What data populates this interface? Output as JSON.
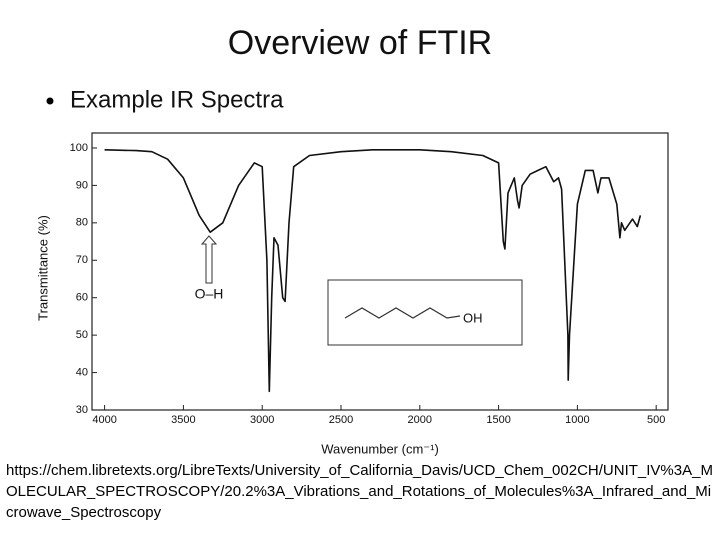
{
  "title": "Overview of FTIR",
  "bullet": "Example IR Spectra",
  "url": "https://chem.libretexts.org/LibreTexts/University_of_California_Davis/UCD_Chem_002CH/UNIT_IV%3A_MOLECULAR_SPECTROSCOPY/20.2%3A_Vibrations_and_Rotations_of_Molecules%3A_Infrared_and_Microwave_Spectroscopy",
  "chart_data": {
    "type": "line",
    "xlabel": "Wavenumber (cm⁻¹)",
    "ylabel": "Transmittance (%)",
    "annotation": "O–H",
    "inset_label": "OH",
    "color": "#111111",
    "x": [
      4000,
      3800,
      3700,
      3600,
      3500,
      3400,
      3330,
      3250,
      3150,
      3050,
      3000,
      2970,
      2955,
      2940,
      2925,
      2900,
      2870,
      2855,
      2830,
      2800,
      2700,
      2500,
      2300,
      2000,
      1800,
      1600,
      1500,
      1470,
      1460,
      1440,
      1400,
      1380,
      1370,
      1350,
      1300,
      1250,
      1200,
      1150,
      1120,
      1100,
      1060,
      1058,
      1050,
      1000,
      950,
      900,
      870,
      850,
      800,
      750,
      730,
      720,
      700,
      650,
      620,
      600
    ],
    "values": [
      99.5,
      99.3,
      99,
      97,
      92,
      82,
      77.5,
      80,
      90,
      96,
      95,
      70,
      35,
      60,
      76,
      74,
      60,
      59,
      80,
      95,
      98,
      99,
      99.5,
      99.5,
      99,
      98,
      96,
      75,
      73,
      88,
      92,
      86,
      84,
      90,
      93,
      94,
      95,
      91,
      92,
      89,
      50,
      38,
      50,
      85,
      94,
      94,
      88,
      92,
      92,
      85,
      76,
      80,
      78,
      81,
      79,
      82
    ],
    "xlim": [
      4080,
      425
    ],
    "ylim": [
      30,
      104
    ],
    "xticks": [
      4000,
      3500,
      3000,
      2500,
      2000,
      1500,
      1000,
      500
    ],
    "yticks": [
      30,
      40,
      50,
      60,
      70,
      80,
      90,
      100
    ]
  }
}
